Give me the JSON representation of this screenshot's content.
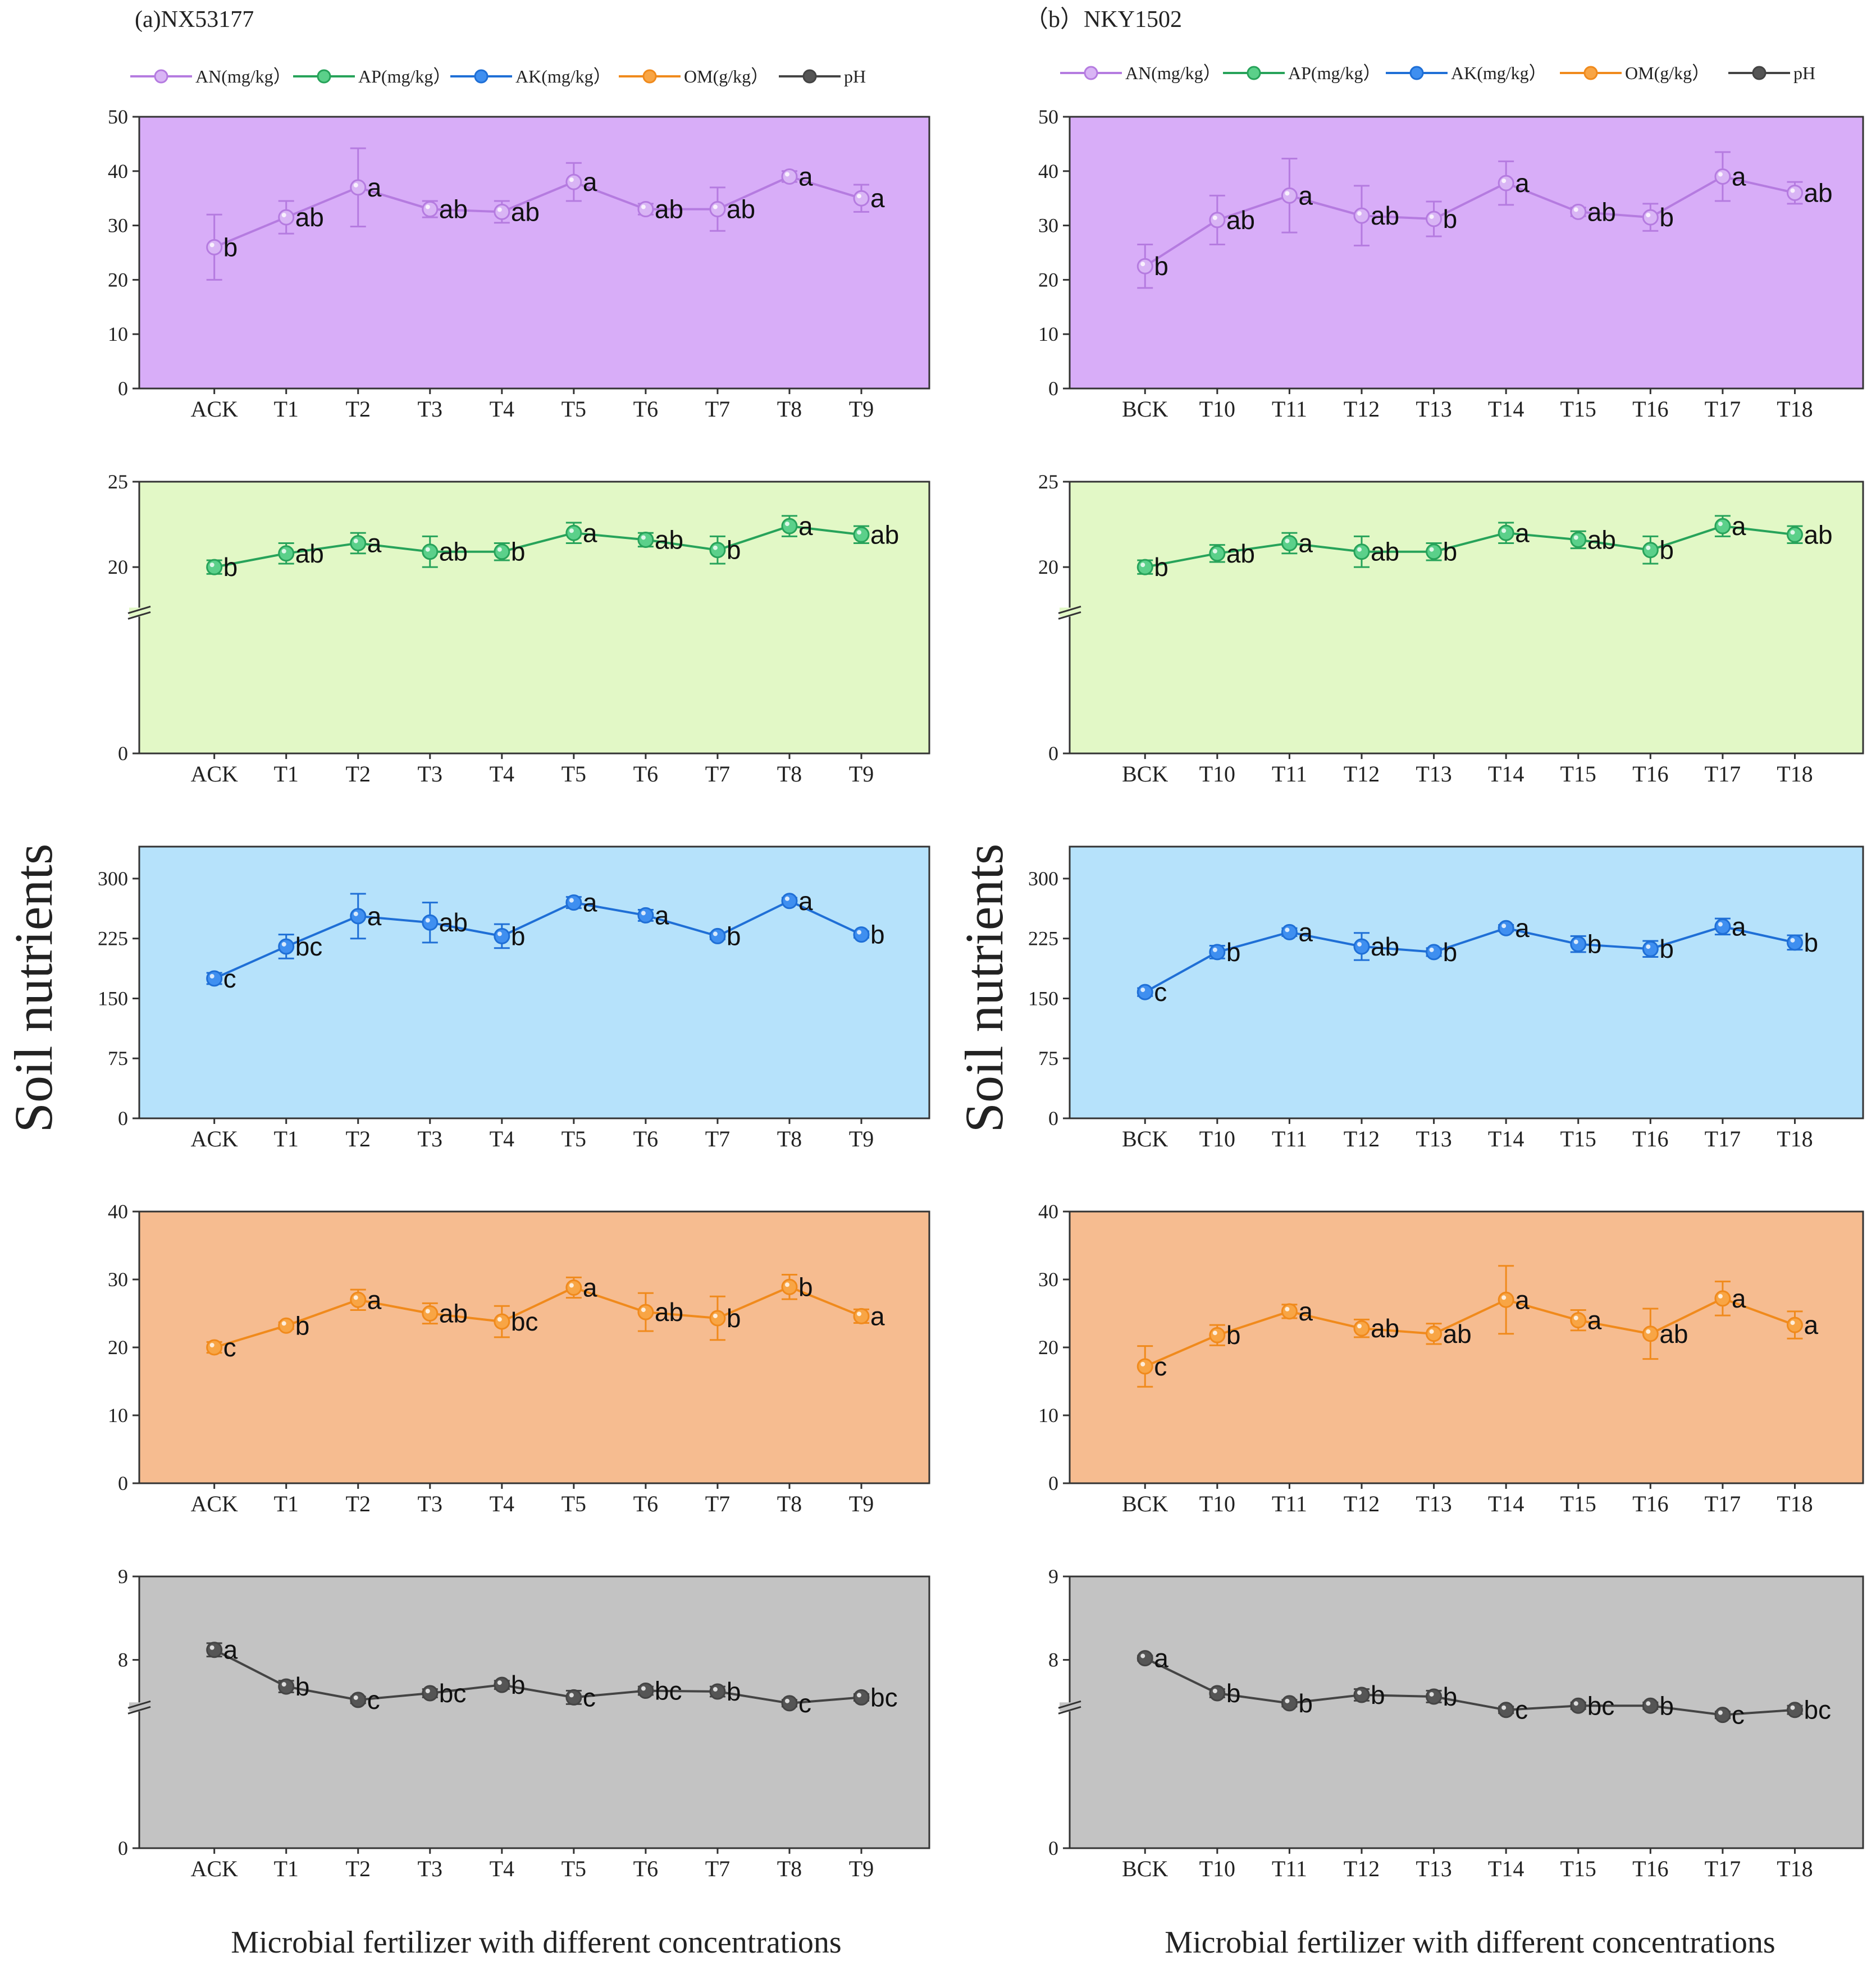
{
  "panels": [
    {
      "id": "a",
      "title": "(a)NX53177",
      "categories": [
        "ACK",
        "T1",
        "T2",
        "T3",
        "T4",
        "T5",
        "T6",
        "T7",
        "T8",
        "T9"
      ],
      "xlabel": "Microbial fertilizer with different concentrations",
      "ylabel": "Soil nutrients"
    },
    {
      "id": "b",
      "title": "（b）NKY1502",
      "categories": [
        "BCK",
        "T10",
        "T11",
        "T12",
        "T13",
        "T14",
        "T15",
        "T16",
        "T17",
        "T18"
      ],
      "xlabel": "Microbial fertilizer with different concentrations",
      "ylabel": "Soil nutrients"
    }
  ],
  "legend": [
    {
      "label": "AN(mg/kg）",
      "color": "#b57be0",
      "marker": "#d9b5f5"
    },
    {
      "label": "AP(mg/kg）",
      "color": "#27a35a",
      "marker": "#5bd08a"
    },
    {
      "label": "AK(mg/kg）",
      "color": "#1f6fd6",
      "marker": "#3f8ff0"
    },
    {
      "label": "OM(g/kg）",
      "color": "#f08a1c",
      "marker": "#f8a545"
    },
    {
      "label": "pH",
      "color": "#444444",
      "marker": "#555555"
    }
  ],
  "chart_data": [
    {
      "type": "line",
      "panel": "a",
      "series": "AN(mg/kg）",
      "bg": "#d8adf8",
      "ylim": [
        0,
        50
      ],
      "ticks": [
        0,
        10,
        20,
        30,
        40,
        50
      ],
      "break": false,
      "values": [
        26,
        31.5,
        37,
        33,
        32.5,
        38,
        33,
        33,
        39,
        35
      ],
      "errors": [
        6,
        3,
        7.2,
        1.5,
        2,
        3.5,
        1,
        4,
        1,
        2.5
      ],
      "letters": [
        "b",
        "ab",
        "a",
        "ab",
        "ab",
        "a",
        "ab",
        "ab",
        "a",
        "a"
      ]
    },
    {
      "type": "line",
      "panel": "a",
      "series": "AP(mg/kg）",
      "bg": "#e2f8c6",
      "ylim": [
        0,
        25
      ],
      "ticks": [
        0,
        20,
        25
      ],
      "break": true,
      "break_from": 14.5,
      "values": [
        20,
        20.8,
        21.4,
        20.9,
        20.9,
        22,
        21.6,
        21,
        22.4,
        21.9
      ],
      "errors": [
        0.4,
        0.6,
        0.6,
        0.9,
        0.5,
        0.6,
        0.4,
        0.8,
        0.6,
        0.5
      ],
      "letters": [
        "b",
        "ab",
        "a",
        "ab",
        "b",
        "a",
        "ab",
        "b",
        "a",
        "ab"
      ]
    },
    {
      "type": "line",
      "panel": "a",
      "series": "AK(mg/kg）",
      "bg": "#b6e2fb",
      "ylim": [
        0,
        340
      ],
      "ticks": [
        0,
        75,
        150,
        225,
        300
      ],
      "break": false,
      "values": [
        175,
        215,
        253,
        245,
        228,
        270,
        254,
        228,
        272,
        230
      ],
      "errors": [
        7,
        15,
        28,
        25,
        15,
        7,
        7,
        4,
        4,
        4
      ],
      "letters": [
        "c",
        "bc",
        "a",
        "ab",
        "b",
        "a",
        "a",
        "b",
        "a",
        "b"
      ]
    },
    {
      "type": "line",
      "panel": "a",
      "series": "OM(g/kg）",
      "bg": "#f6bc90",
      "ylim": [
        0,
        40
      ],
      "ticks": [
        0,
        10,
        20,
        30,
        40
      ],
      "break": false,
      "values": [
        20,
        23.2,
        27,
        25,
        23.8,
        28.8,
        25.2,
        24.3,
        28.9,
        24.6
      ],
      "errors": [
        0.8,
        0.5,
        1.5,
        1.5,
        2.3,
        1.5,
        2.8,
        3.2,
        1.8,
        1
      ],
      "letters": [
        "c",
        "b",
        "a",
        "ab",
        "bc",
        "a",
        "ab",
        "b",
        "b",
        "a"
      ]
    },
    {
      "type": "line",
      "panel": "a",
      "series": "pH",
      "bg": "#c3c3c3",
      "ylim": [
        0,
        9
      ],
      "ticks": [
        0,
        8,
        9
      ],
      "break": true,
      "break_from": 6.85,
      "values": [
        8.12,
        7.68,
        7.52,
        7.6,
        7.7,
        7.55,
        7.63,
        7.62,
        7.48,
        7.55
      ],
      "errors": [
        0.08,
        0.07,
        0.04,
        0.05,
        0.05,
        0.08,
        0.05,
        0.06,
        0.04,
        0.04
      ],
      "letters": [
        "a",
        "b",
        "c",
        "bc",
        "b",
        "c",
        "bc",
        "b",
        "c",
        "bc"
      ]
    },
    {
      "type": "line",
      "panel": "b",
      "series": "AN(mg/kg）",
      "bg": "#d8adf8",
      "ylim": [
        0,
        50
      ],
      "ticks": [
        0,
        10,
        20,
        30,
        40,
        50
      ],
      "break": false,
      "values": [
        22.5,
        31,
        35.5,
        31.8,
        31.2,
        37.8,
        32.5,
        31.5,
        39,
        36
      ],
      "errors": [
        4,
        4.5,
        6.8,
        5.5,
        3.2,
        4,
        0.8,
        2.5,
        4.5,
        2
      ],
      "letters": [
        "b",
        "ab",
        "a",
        "ab",
        "b",
        "a",
        "ab",
        "b",
        "a",
        "ab"
      ]
    },
    {
      "type": "line",
      "panel": "b",
      "series": "AP(mg/kg）",
      "bg": "#e2f8c6",
      "ylim": [
        0,
        25
      ],
      "ticks": [
        0,
        20,
        25
      ],
      "break": true,
      "break_from": 14.5,
      "values": [
        20,
        20.8,
        21.4,
        20.9,
        20.9,
        22,
        21.6,
        21,
        22.4,
        21.9
      ],
      "errors": [
        0.4,
        0.5,
        0.6,
        0.9,
        0.5,
        0.6,
        0.5,
        0.8,
        0.6,
        0.5
      ],
      "letters": [
        "b",
        "ab",
        "a",
        "ab",
        "b",
        "a",
        "ab",
        "b",
        "a",
        "ab"
      ]
    },
    {
      "type": "line",
      "panel": "b",
      "series": "AK(mg/kg）",
      "bg": "#b6e2fb",
      "ylim": [
        0,
        340
      ],
      "ticks": [
        0,
        75,
        150,
        225,
        300
      ],
      "break": false,
      "values": [
        158,
        208,
        233,
        215,
        208,
        238,
        218,
        212,
        240,
        220
      ],
      "errors": [
        5,
        8,
        5,
        17,
        5,
        4,
        10,
        10,
        10,
        9
      ],
      "letters": [
        "c",
        "b",
        "a",
        "ab",
        "b",
        "a",
        "b",
        "b",
        "a",
        "b"
      ]
    },
    {
      "type": "line",
      "panel": "b",
      "series": "OM(g/kg）",
      "bg": "#f6bc90",
      "ylim": [
        0,
        40
      ],
      "ticks": [
        0,
        10,
        20,
        30,
        40
      ],
      "break": false,
      "values": [
        17.2,
        21.8,
        25.3,
        22.8,
        22,
        27,
        24,
        22,
        27.2,
        23.3
      ],
      "errors": [
        3,
        1.5,
        1,
        1.3,
        1.5,
        5,
        1.5,
        3.7,
        2.5,
        2
      ],
      "letters": [
        "c",
        "b",
        "a",
        "ab",
        "ab",
        "a",
        "a",
        "ab",
        "a",
        "a"
      ]
    },
    {
      "type": "line",
      "panel": "b",
      "series": "pH",
      "bg": "#c3c3c3",
      "ylim": [
        0,
        9
      ],
      "ticks": [
        0,
        8,
        9
      ],
      "break": true,
      "break_from": 6.85,
      "values": [
        8.02,
        7.6,
        7.48,
        7.58,
        7.56,
        7.4,
        7.45,
        7.45,
        7.34,
        7.4
      ],
      "errors": [
        0.03,
        0.05,
        0.04,
        0.07,
        0.07,
        0.04,
        0.04,
        0.04,
        0.04,
        0.05
      ],
      "letters": [
        "a",
        "b",
        "b",
        "b",
        "b",
        "c",
        "bc",
        "b",
        "c",
        "bc"
      ]
    }
  ]
}
